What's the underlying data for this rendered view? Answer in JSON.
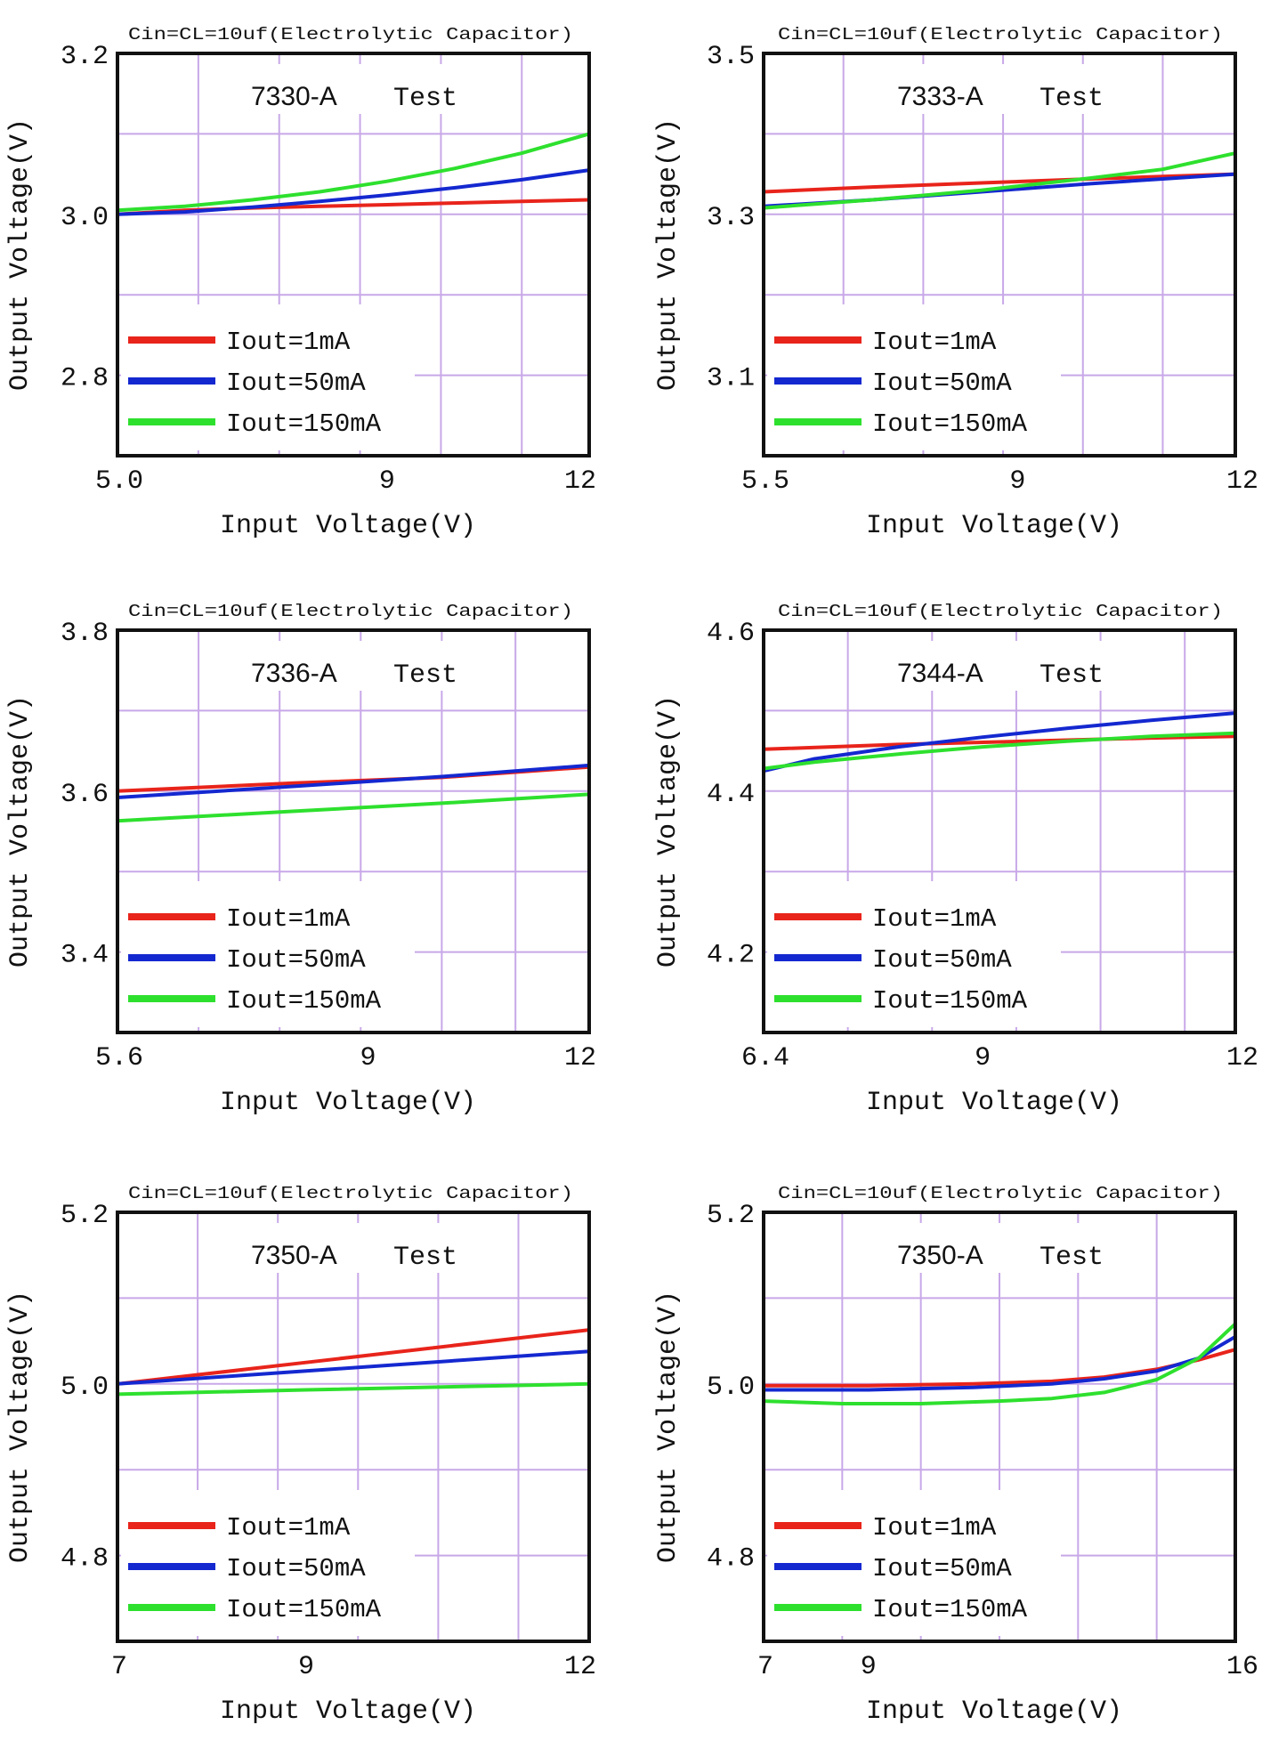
{
  "colors": {
    "red": "#e8241b",
    "blue": "#1428d0",
    "green": "#2ee02e",
    "grid": "#c8a8e8",
    "frame": "#111111"
  },
  "chart_data": [
    {
      "type": "line",
      "note": "Cin=CL=10uf(Electrolytic Capacitor)",
      "title": "7330-A",
      "title_suffix": "Test",
      "xlabel": "Input Voltage(V)",
      "ylabel": "Output Voltage(V)",
      "xlim": [
        5.0,
        12
      ],
      "ylim": [
        2.7,
        3.2
      ],
      "xticks": [
        "5.0",
        "9",
        "12"
      ],
      "xtick_values": [
        5.0,
        9,
        12
      ],
      "yticks": [
        "3.2",
        "3.0",
        "2.8"
      ],
      "ytick_values": [
        3.2,
        3.0,
        2.8
      ],
      "grid": true,
      "x_grid": [
        5.0,
        6.2,
        7.4,
        8.6,
        9.8,
        11,
        12
      ],
      "y_grid": [
        3.2,
        3.1,
        3.0,
        2.9,
        2.8,
        2.7
      ],
      "legend": [
        "Iout=1mA",
        "Iout=50mA",
        "Iout=150mA"
      ],
      "series": [
        {
          "name": "Iout=1mA",
          "color": "red",
          "x": [
            5.0,
            6,
            7,
            8,
            9,
            10,
            11,
            12
          ],
          "y": [
            3.0,
            3.005,
            3.008,
            3.01,
            3.012,
            3.014,
            3.016,
            3.018
          ]
        },
        {
          "name": "Iout=50mA",
          "color": "blue",
          "x": [
            5.0,
            6,
            7,
            8,
            9,
            10,
            11,
            12
          ],
          "y": [
            3.0,
            3.003,
            3.009,
            3.016,
            3.024,
            3.033,
            3.043,
            3.055
          ]
        },
        {
          "name": "Iout=150mA",
          "color": "green",
          "x": [
            5.0,
            6,
            7,
            8,
            9,
            10,
            11,
            12
          ],
          "y": [
            3.005,
            3.01,
            3.018,
            3.028,
            3.041,
            3.057,
            3.076,
            3.1
          ]
        }
      ]
    },
    {
      "type": "line",
      "note": "Cin=CL=10uf(Electrolytic Capacitor)",
      "title": "7333-A",
      "title_suffix": "Test",
      "xlabel": "Input Voltage(V)",
      "ylabel": "Output Voltage(V)",
      "xlim": [
        5.5,
        12
      ],
      "ylim": [
        3.0,
        3.5
      ],
      "xticks": [
        "5.5",
        "9",
        "12"
      ],
      "xtick_values": [
        5.5,
        9,
        12
      ],
      "yticks": [
        "3.5",
        "3.3",
        "3.1"
      ],
      "ytick_values": [
        3.5,
        3.3,
        3.1
      ],
      "grid": true,
      "x_grid": [
        5.5,
        6.6,
        7.7,
        8.8,
        9.9,
        11,
        12
      ],
      "y_grid": [
        3.5,
        3.4,
        3.3,
        3.2,
        3.1,
        3.0
      ],
      "legend": [
        "Iout=1mA",
        "Iout=50mA",
        "Iout=150mA"
      ],
      "series": [
        {
          "name": "Iout=1mA",
          "color": "red",
          "x": [
            5.5,
            7,
            8.5,
            10,
            11,
            12
          ],
          "y": [
            3.328,
            3.334,
            3.339,
            3.344,
            3.347,
            3.35
          ]
        },
        {
          "name": "Iout=50mA",
          "color": "blue",
          "x": [
            5.5,
            7,
            8.5,
            10,
            11,
            12
          ],
          "y": [
            3.31,
            3.318,
            3.328,
            3.338,
            3.344,
            3.35
          ]
        },
        {
          "name": "Iout=150mA",
          "color": "green",
          "x": [
            5.5,
            7,
            8.5,
            10,
            11,
            12
          ],
          "y": [
            3.308,
            3.318,
            3.33,
            3.345,
            3.356,
            3.376
          ]
        }
      ]
    },
    {
      "type": "line",
      "note": "Cin=CL=10uf(Electrolytic Capacitor)",
      "title": "7336-A",
      "title_suffix": "Test",
      "xlabel": "Input Voltage(V)",
      "ylabel": "Output Voltage(V)",
      "xlim": [
        5.6,
        12
      ],
      "ylim": [
        3.3,
        3.8
      ],
      "xticks": [
        "5.6",
        "9",
        "12"
      ],
      "xtick_values": [
        5.6,
        9,
        12
      ],
      "yticks": [
        "3.8",
        "3.6",
        "3.4"
      ],
      "ytick_values": [
        3.8,
        3.6,
        3.4
      ],
      "grid": true,
      "x_grid": [
        5.6,
        6.7,
        7.8,
        8.9,
        10,
        11,
        12
      ],
      "y_grid": [
        3.8,
        3.7,
        3.6,
        3.5,
        3.4,
        3.3
      ],
      "legend": [
        "Iout=1mA",
        "Iout=50mA",
        "Iout=150mA"
      ],
      "series": [
        {
          "name": "Iout=1mA",
          "color": "red",
          "x": [
            5.6,
            8,
            10,
            12
          ],
          "y": [
            3.6,
            3.61,
            3.617,
            3.63
          ]
        },
        {
          "name": "Iout=50mA",
          "color": "blue",
          "x": [
            5.6,
            8,
            10,
            12
          ],
          "y": [
            3.592,
            3.606,
            3.618,
            3.632
          ]
        },
        {
          "name": "Iout=150mA",
          "color": "green",
          "x": [
            5.6,
            8,
            10,
            12
          ],
          "y": [
            3.563,
            3.575,
            3.585,
            3.596
          ]
        }
      ]
    },
    {
      "type": "line",
      "note": "Cin=CL=10uf(Electrolytic Capacitor)",
      "title": "7344-A",
      "title_suffix": "Test",
      "xlabel": "Input Voltage(V)",
      "ylabel": "Output Voltage(V)",
      "xlim": [
        6.4,
        12
      ],
      "ylim": [
        4.1,
        4.6
      ],
      "xticks": [
        "6.4",
        "9",
        "12"
      ],
      "xtick_values": [
        6.4,
        9,
        12
      ],
      "yticks": [
        "4.6",
        "4.4",
        "4.2"
      ],
      "ytick_values": [
        4.6,
        4.4,
        4.2
      ],
      "grid": true,
      "x_grid": [
        6.4,
        7.4,
        8.4,
        9.4,
        10.4,
        11.4,
        12
      ],
      "y_grid": [
        4.6,
        4.5,
        4.4,
        4.3,
        4.2,
        4.1
      ],
      "legend": [
        "Iout=1mA",
        "Iout=50mA",
        "Iout=150mA"
      ],
      "series": [
        {
          "name": "Iout=1mA",
          "color": "red",
          "x": [
            6.4,
            8,
            9.5,
            11,
            12
          ],
          "y": [
            4.452,
            4.458,
            4.462,
            4.466,
            4.468
          ]
        },
        {
          "name": "Iout=50mA",
          "color": "blue",
          "x": [
            6.4,
            7,
            8,
            9,
            10,
            11,
            12
          ],
          "y": [
            4.425,
            4.44,
            4.455,
            4.467,
            4.478,
            4.488,
            4.497
          ]
        },
        {
          "name": "Iout=150mA",
          "color": "green",
          "x": [
            6.4,
            7,
            8,
            9,
            10,
            11,
            12
          ],
          "y": [
            4.428,
            4.436,
            4.446,
            4.455,
            4.462,
            4.468,
            4.472
          ]
        }
      ]
    },
    {
      "type": "line",
      "note": "Cin=CL=10uf(Electrolytic Capacitor)",
      "title": "7350-A",
      "title_suffix": "Test",
      "xlabel": "Input Voltage(V)",
      "ylabel": "Output Voltage(V)",
      "xlim": [
        7,
        12
      ],
      "ylim": [
        4.7,
        5.2
      ],
      "xticks": [
        "7",
        "9",
        "12"
      ],
      "xtick_values": [
        7,
        9,
        12
      ],
      "yticks": [
        "5.2",
        "5.0",
        "4.8"
      ],
      "ytick_values": [
        5.2,
        5.0,
        4.8
      ],
      "grid": true,
      "x_grid": [
        7,
        7.85,
        8.7,
        9.55,
        10.4,
        11.25,
        12
      ],
      "y_grid": [
        5.2,
        5.1,
        5.0,
        4.9,
        4.8,
        4.7
      ],
      "legend": [
        "Iout=1mA",
        "Iout=50mA",
        "Iout=150mA"
      ],
      "series": [
        {
          "name": "Iout=1mA",
          "color": "red",
          "x": [
            7,
            9,
            12
          ],
          "y": [
            5.0,
            5.025,
            5.063
          ]
        },
        {
          "name": "Iout=50mA",
          "color": "blue",
          "x": [
            7,
            9,
            12
          ],
          "y": [
            5.0,
            5.015,
            5.038
          ]
        },
        {
          "name": "Iout=150mA",
          "color": "green",
          "x": [
            7,
            9,
            12
          ],
          "y": [
            4.988,
            4.993,
            5.0
          ]
        }
      ]
    },
    {
      "type": "line",
      "note": "Cin=CL=10uf(Electrolytic Capacitor)",
      "title": "7350-A",
      "title_suffix": "Test",
      "xlabel": "Input Voltage(V)",
      "ylabel": "Output Voltage(V)",
      "xlim": [
        7,
        16
      ],
      "ylim": [
        4.7,
        5.2
      ],
      "xticks": [
        "7",
        "9",
        "16"
      ],
      "xtick_values": [
        7,
        9,
        16
      ],
      "yticks": [
        "5.2",
        "5.0",
        "4.8"
      ],
      "ytick_values": [
        5.2,
        5.0,
        4.8
      ],
      "grid": true,
      "x_grid": [
        7,
        8.5,
        10,
        11.5,
        13,
        14.5,
        16
      ],
      "y_grid": [
        5.2,
        5.1,
        5.0,
        4.9,
        4.8,
        4.7
      ],
      "legend": [
        "Iout=1mA",
        "Iout=50mA",
        "Iout=150mA"
      ],
      "series": [
        {
          "name": "Iout=1mA",
          "color": "red",
          "x": [
            7,
            9,
            11,
            12.5,
            13.5,
            14.5,
            15.3,
            16
          ],
          "y": [
            4.998,
            4.998,
            5.0,
            5.003,
            5.008,
            5.017,
            5.028,
            5.04
          ]
        },
        {
          "name": "Iout=50mA",
          "color": "blue",
          "x": [
            7,
            9,
            11,
            12.5,
            13.5,
            14.5,
            15.3,
            16
          ],
          "y": [
            4.993,
            4.993,
            4.996,
            5.0,
            5.006,
            5.015,
            5.03,
            5.055
          ]
        },
        {
          "name": "Iout=150mA",
          "color": "green",
          "x": [
            7,
            8.5,
            10,
            11.5,
            12.5,
            13.5,
            14.5,
            15.3,
            16
          ],
          "y": [
            4.98,
            4.977,
            4.977,
            4.98,
            4.983,
            4.99,
            5.005,
            5.03,
            5.07
          ]
        }
      ]
    }
  ]
}
